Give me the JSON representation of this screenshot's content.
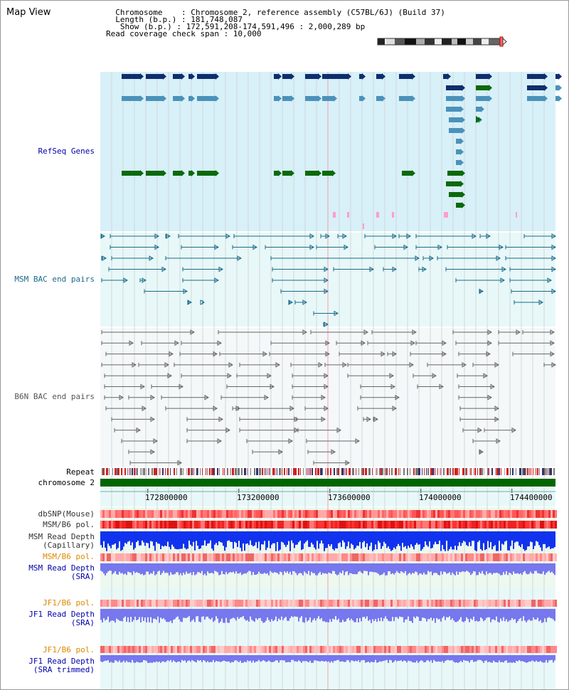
{
  "header": {
    "title": "Map View",
    "lines": [
      "  Chromosome    : Chromosome 2, reference assembly (C57BL/6J) (Build 37)",
      "  Length (b.p.) : 181,748,087",
      "   Show (b.p.) : 172,591,208-174,591,496 : 2,000,289 bp",
      "Read coverage check span : 10,000"
    ]
  },
  "tracks": {
    "refseq": "RefSeq Genes",
    "msm_bac": "MSM BAC end pairs",
    "b6n_bac": "B6N BAC end pairs",
    "repeat": "Repeat",
    "chromosome": "chromosome 2",
    "dbsnp": "dbSNP(Mouse)",
    "msm_pol_cap": "MSM/B6 pol.",
    "msm_depth_cap": "MSM Read Depth\n(Capillary)",
    "msm_pol_sra": "MSM/B6 pol.",
    "msm_depth_sra": "MSM Read Depth\n(SRA)",
    "jf1_pol": "JF1/B6 pol.",
    "jf1_depth": "JF1 Read Depth\n(SRA)",
    "jf1_pol_trim": "JF1/B6 pol.",
    "jf1_depth_trim": "JF1 Read Depth\n(SRA trimmed)"
  },
  "axis": {
    "start": 172591208,
    "end": 174591496,
    "ticks": [
      172800000,
      173200000,
      173600000,
      174000000,
      174400000
    ],
    "tick_labels": [
      "172800000",
      "173200000",
      "173600000",
      "174000000",
      "174400000"
    ]
  },
  "colors": {
    "refseq_bg": "#d8f0f8",
    "gene_dark": "#0d2f6e",
    "gene_mid": "#4a92bb",
    "gene_green": "#0b6a0b",
    "msm_bac": "#1a6a8a",
    "b6n_bac": "#666666",
    "label_blue": "#0000aa",
    "label_orange": "#dd8800",
    "chromosome_bar": "#006600",
    "depth_blue": "#1133ee",
    "depth_violet": "#7777ee"
  }
}
